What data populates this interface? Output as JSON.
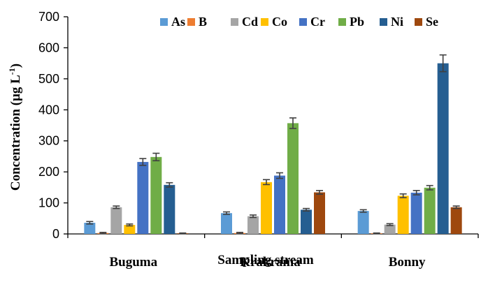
{
  "chart_data": {
    "type": "bar",
    "categories": [
      "Buguma",
      "Krakrama",
      "Bonny"
    ],
    "series": [
      {
        "name": "As",
        "color": "#5B9BD5",
        "values": [
          36,
          67,
          74
        ],
        "errors": [
          4,
          4,
          4
        ]
      },
      {
        "name": "B",
        "color": "#ED7D31",
        "values": [
          3,
          3,
          2
        ],
        "errors": [
          2,
          2,
          1
        ]
      },
      {
        "name": "Cd",
        "color": "#A5A5A5",
        "values": [
          86,
          57,
          30
        ],
        "errors": [
          4,
          4,
          3
        ]
      },
      {
        "name": "Co",
        "color": "#FFC000",
        "values": [
          29,
          167,
          123
        ],
        "errors": [
          3,
          8,
          6
        ]
      },
      {
        "name": "Cr",
        "color": "#4472C4",
        "values": [
          232,
          188,
          133
        ],
        "errors": [
          11,
          9,
          7
        ]
      },
      {
        "name": "Pb",
        "color": "#70AD47",
        "values": [
          248,
          357,
          149
        ],
        "errors": [
          12,
          17,
          7
        ]
      },
      {
        "name": "Ni",
        "color": "#255E91",
        "values": [
          158,
          78,
          550
        ],
        "errors": [
          7,
          4,
          27
        ]
      },
      {
        "name": "Se",
        "color": "#9E480E",
        "values": [
          2,
          134,
          86
        ],
        "errors": [
          1,
          6,
          4
        ]
      }
    ],
    "xlabel": "Sampling stream",
    "ylabel_main": "Concentration (μg L",
    "ylabel_sup": "-1",
    "ylabel_end": ")",
    "ylim": [
      0,
      700
    ],
    "yticks": [
      "0",
      "100",
      "200",
      "300",
      "400",
      "500",
      "600",
      "700"
    ],
    "legend_position": "top-right",
    "grid": false,
    "error_bar_color": "#404040"
  }
}
